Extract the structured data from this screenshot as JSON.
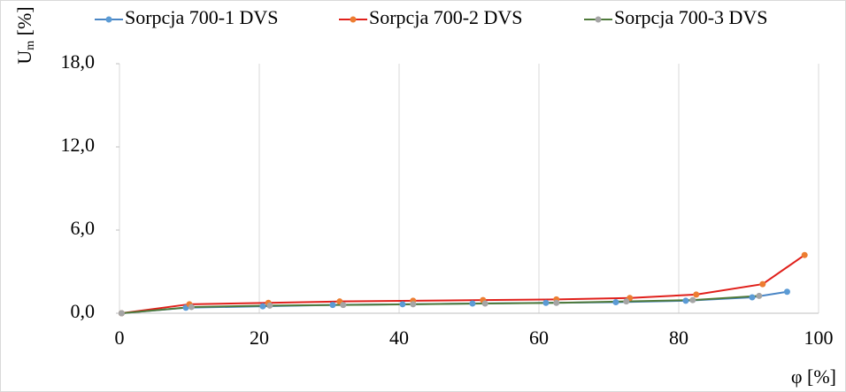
{
  "chart_data": {
    "type": "line",
    "ylabel_base": "U",
    "ylabel_sub": "m",
    "ylabel_unit": " [%]",
    "xlabel": "φ [%]",
    "xlim": [
      0,
      100
    ],
    "xticks": [
      0,
      20,
      40,
      60,
      80,
      100
    ],
    "ylim": [
      0,
      18
    ],
    "yticks": [
      {
        "value": 0,
        "label": "0,0"
      },
      {
        "value": 6,
        "label": "6,0"
      },
      {
        "value": 12,
        "label": "12,0"
      },
      {
        "value": 18,
        "label": "18,0"
      }
    ],
    "grid": "x",
    "legend": "top",
    "series": [
      {
        "name": "Sorpcja 700-1 DVS",
        "color": "#4a86c5",
        "marker_color": "#5b9bd5",
        "x": [
          0.3,
          9.5,
          20.5,
          30.5,
          40.5,
          50.5,
          61,
          71,
          81,
          90.5,
          95.5
        ],
        "values": [
          0,
          0.4,
          0.5,
          0.6,
          0.65,
          0.7,
          0.75,
          0.8,
          0.9,
          1.15,
          1.55
        ]
      },
      {
        "name": "Sorpcja 700-2 DVS",
        "color": "#e0201b",
        "marker_color": "#ed7d31",
        "x": [
          0.3,
          10,
          21.3,
          31.5,
          42,
          52,
          62.5,
          73,
          82.5,
          92,
          98
        ],
        "values": [
          0,
          0.65,
          0.75,
          0.85,
          0.9,
          0.95,
          1.0,
          1.1,
          1.35,
          2.1,
          4.2
        ]
      },
      {
        "name": "Sorpcja 700-3 DVS",
        "color": "#4f7a3a",
        "marker_color": "#a5a5a5",
        "x": [
          0.3,
          10.3,
          21.5,
          32,
          42,
          52.3,
          62.5,
          72.5,
          82,
          91.5
        ],
        "values": [
          0,
          0.45,
          0.55,
          0.6,
          0.65,
          0.7,
          0.75,
          0.85,
          0.95,
          1.25
        ]
      }
    ]
  }
}
